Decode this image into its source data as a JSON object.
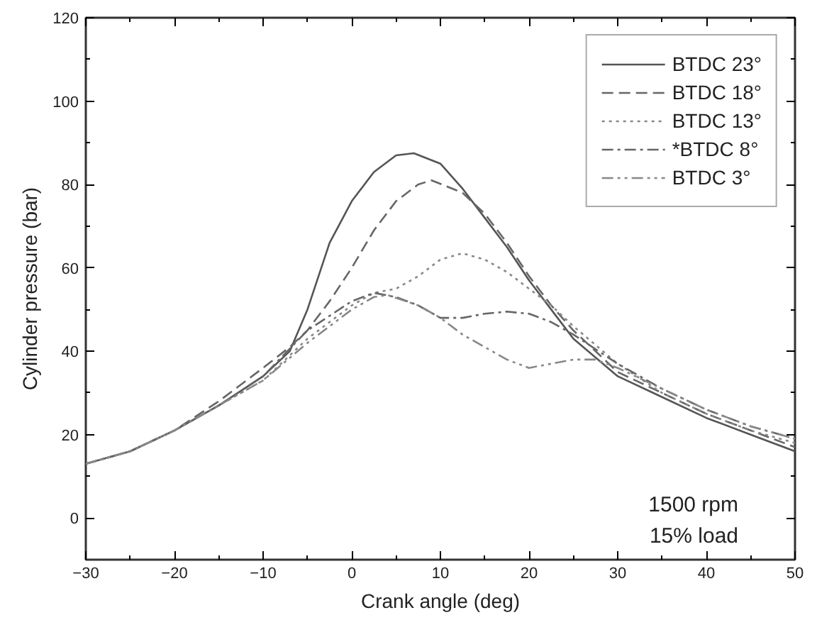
{
  "chart_data": {
    "type": "line",
    "xlabel": "Crank angle (deg)",
    "ylabel": "Cylinder pressure (bar)",
    "xlim": [
      -30,
      50
    ],
    "ylim": [
      -10,
      120
    ],
    "xticks": [
      -30,
      -20,
      -10,
      0,
      10,
      20,
      30,
      40,
      50
    ],
    "yticks": [
      0,
      20,
      40,
      60,
      80,
      100,
      120
    ],
    "grid": false,
    "legend": "top right",
    "marker": "none",
    "annotations": [
      "1500 rpm",
      "15% load"
    ],
    "series": [
      {
        "name": "BTDC 23°",
        "color": "#555555",
        "line_style": "solid",
        "x": [
          -30,
          -25,
          -20,
          -15,
          -10,
          -7,
          -5,
          -2.5,
          0,
          2.5,
          5,
          7,
          10,
          12.5,
          15,
          17.5,
          20,
          22.5,
          25,
          30,
          35,
          40,
          45,
          50
        ],
        "values": [
          13,
          16,
          21,
          27,
          34,
          40,
          50,
          66,
          76,
          83,
          87,
          87.5,
          85,
          79,
          72,
          65,
          57,
          50,
          43,
          34,
          29,
          24,
          20,
          16
        ]
      },
      {
        "name": "BTDC 18°",
        "color": "#666666",
        "line_style": "dashed",
        "x": [
          -30,
          -25,
          -20,
          -15,
          -10,
          -7,
          -5,
          -2.5,
          0,
          2.5,
          5,
          7.5,
          9,
          12.5,
          15,
          17.5,
          20,
          22.5,
          25,
          30,
          35,
          40,
          45,
          50
        ],
        "values": [
          13,
          16,
          21,
          28,
          36,
          41,
          45,
          52,
          60,
          69,
          76,
          80,
          81,
          78,
          73,
          66,
          58,
          51,
          45,
          35,
          30,
          25,
          21,
          17
        ]
      },
      {
        "name": "BTDC 13°",
        "color": "#888888",
        "line_style": "dotted",
        "x": [
          -30,
          -25,
          -20,
          -15,
          -10,
          -5,
          0,
          2.5,
          5,
          7.5,
          10,
          12.5,
          15,
          17.5,
          20,
          22.5,
          25,
          30,
          35,
          40,
          45,
          50
        ],
        "values": [
          13,
          16,
          21,
          27,
          33,
          43,
          51,
          54,
          55,
          58,
          62,
          63.5,
          62,
          59,
          55,
          51,
          46,
          37,
          30,
          25,
          21,
          18
        ]
      },
      {
        "name": "*BTDC 8°",
        "color": "#666666",
        "line_style": "dashdot",
        "x": [
          -30,
          -25,
          -20,
          -15,
          -10,
          -5,
          0,
          2.5,
          5,
          7.5,
          10,
          12.5,
          15,
          17.5,
          20,
          22.5,
          25,
          30,
          35,
          40,
          45,
          50
        ],
        "values": [
          13,
          16,
          21,
          27,
          34,
          45,
          52,
          54,
          53,
          51,
          48,
          48,
          49,
          49.5,
          49,
          47,
          44,
          37,
          31,
          26,
          22,
          19
        ]
      },
      {
        "name": "BTDC 3°",
        "color": "#888888",
        "line_style": "dashdotdot",
        "x": [
          -30,
          -25,
          -20,
          -15,
          -10,
          -5,
          0,
          2.5,
          4,
          7.5,
          10,
          12.5,
          15,
          17.5,
          20,
          22.5,
          25,
          27.5,
          30,
          35,
          40,
          45,
          50
        ],
        "values": [
          13,
          16,
          21,
          27,
          33,
          42,
          50,
          53,
          53.5,
          51,
          48,
          44,
          41,
          38,
          36,
          37,
          38,
          38,
          36,
          31,
          26,
          22,
          19
        ]
      }
    ]
  }
}
